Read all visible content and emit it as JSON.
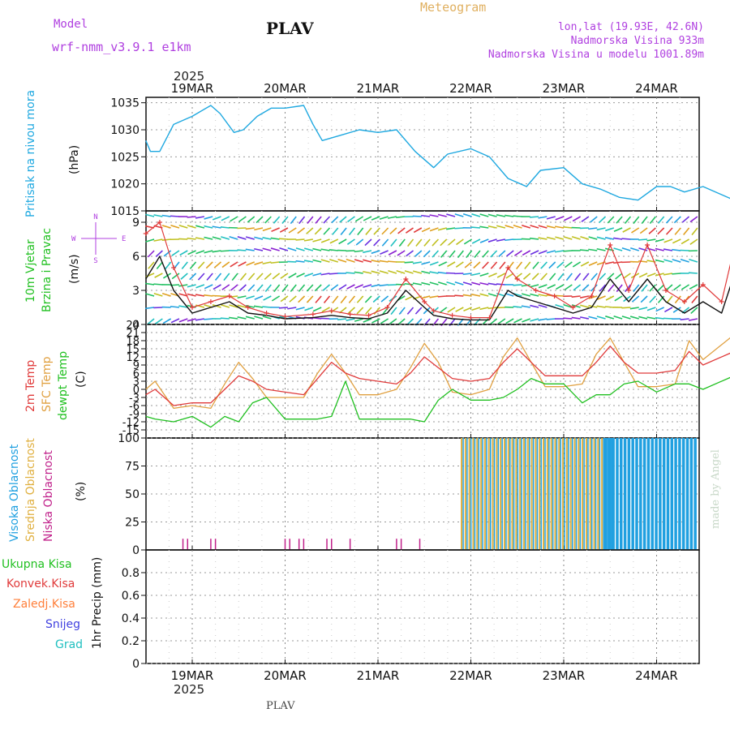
{
  "header": {
    "model_label": "Model",
    "model_name": "wrf-nmm_v3.9.1 e1km",
    "station": "PLAV",
    "meteogram_label": "Meteogram",
    "lonlat": "lon,lat (19.93E, 42.6N)",
    "elevation": "Nadmorska Visina 933m",
    "model_elevation": "Nadmorska Visina u modelu 1001.89m",
    "watermark": "made by Angel",
    "footer_station": "PLAV",
    "year": "2025",
    "dates": [
      "19MAR",
      "20MAR",
      "21MAR",
      "22MAR",
      "23MAR",
      "24MAR"
    ]
  },
  "panel_labels": {
    "pressure": {
      "title": "Pritisak na nivou mora",
      "unit": "(hPa)"
    },
    "wind": {
      "title1": "10m Vjetar",
      "title2": "Brzina i Pravac",
      "unit": "(m/s)",
      "compass_n": "N",
      "compass_s": "S",
      "compass_e": "E",
      "compass_w": "W"
    },
    "temp": {
      "t1": "2m Temp",
      "t2": "SFC Temp",
      "t3": "dewpt Temp",
      "unit": "(C)"
    },
    "cloud": {
      "c1": "Visoka Oblacnost",
      "c2": "Srednja Oblacnost",
      "c3": "Niska Oblacnost",
      "unit": "(%)"
    },
    "precip": {
      "p1": "Ukupna Kisa",
      "p2": "Konvek.Kisa",
      "p3": "Zaledj.Kisa",
      "p4": "Snijeg",
      "p5": "Grad",
      "unit": "1hr Precip (mm)"
    }
  },
  "colors": {
    "pressure": "#1ea8e0",
    "t2m": "#e03a3a",
    "tsfc": "#e0a040",
    "dewpt": "#20c020",
    "wind_speed": "#111111",
    "wind_gust": "#e03a3a",
    "cloud_high": "#20a0e0",
    "cloud_mid": "#e0b040",
    "cloud_low": "#c0208a",
    "rain_total": "#20c020",
    "rain_conv": "#e03a3a",
    "rain_freezing": "#ff7f3a",
    "snow": "#4040e0",
    "hail": "#20c0c0",
    "title_purple": "#b040e0",
    "meteogram_orange": "#e0b060"
  },
  "chart_data": [
    {
      "type": "line",
      "name": "pressure",
      "x_unit": "days since 19MAR 00Z",
      "ylim": [
        1015,
        1036
      ],
      "yticks": [
        1015,
        1020,
        1025,
        1030,
        1035
      ],
      "series": [
        {
          "name": "Pritisak na nivou mora",
          "x": [
            -0.5,
            -0.45,
            -0.35,
            -0.2,
            0,
            0.2,
            0.3,
            0.45,
            0.55,
            0.7,
            0.85,
            1,
            1.2,
            1.3,
            1.4,
            1.6,
            1.8,
            2,
            2.2,
            2.4,
            2.6,
            2.75,
            3,
            3.2,
            3.4,
            3.6,
            3.75,
            4,
            4.2,
            4.4,
            4.6,
            4.8,
            5,
            5.15,
            5.3,
            5.5,
            5.7,
            5.9
          ],
          "y": [
            1028,
            1026,
            1026,
            1031,
            1032.5,
            1034.5,
            1033,
            1029.5,
            1030,
            1032.5,
            1034,
            1034,
            1034.5,
            1031,
            1028,
            1029,
            1030,
            1029.5,
            1030,
            1026,
            1023,
            1025.5,
            1026.5,
            1025,
            1021,
            1019.5,
            1022.5,
            1023,
            1020,
            1019,
            1017.5,
            1017,
            1019.5,
            1019.5,
            1018.5,
            1019.5,
            1018,
            1016.5
          ]
        }
      ]
    },
    {
      "type": "line",
      "name": "wind",
      "ylim": [
        0,
        10
      ],
      "yticks": [
        0,
        3,
        6,
        9
      ],
      "series": [
        {
          "name": "speed",
          "x": [
            -0.5,
            -0.35,
            -0.2,
            0,
            0.2,
            0.4,
            0.6,
            0.8,
            1,
            1.3,
            1.5,
            1.7,
            1.9,
            2.1,
            2.3,
            2.5,
            2.6,
            2.8,
            3,
            3.2,
            3.4,
            3.5,
            3.7,
            3.9,
            4.1,
            4.3,
            4.5,
            4.7,
            4.9,
            5.1,
            5.3,
            5.5,
            5.7,
            5.9
          ],
          "y": [
            4,
            6,
            3,
            1,
            1.5,
            2,
            1,
            0.8,
            0.5,
            0.6,
            0.8,
            0.6,
            0.5,
            1,
            3,
            1.5,
            0.8,
            0.5,
            0.4,
            0.4,
            3,
            2.5,
            2,
            1.5,
            1,
            1.5,
            4,
            2,
            4,
            2,
            1,
            2,
            1,
            6
          ]
        },
        {
          "name": "gust",
          "x": [
            -0.5,
            -0.35,
            -0.2,
            0,
            0.2,
            0.4,
            0.6,
            0.8,
            1,
            1.3,
            1.5,
            1.7,
            1.9,
            2.1,
            2.3,
            2.5,
            2.6,
            2.8,
            3,
            3.2,
            3.4,
            3.5,
            3.7,
            3.9,
            4.1,
            4.3,
            4.5,
            4.7,
            4.9,
            5.1,
            5.3,
            5.5,
            5.7,
            5.9
          ],
          "y": [
            8,
            9,
            5,
            1.5,
            2,
            2.5,
            1.5,
            1,
            0.7,
            0.9,
            1.2,
            0.9,
            0.8,
            1.5,
            4,
            2,
            1.2,
            0.8,
            0.6,
            0.6,
            5,
            4,
            3,
            2.5,
            1.5,
            2.5,
            7,
            3,
            7,
            3,
            2,
            3.5,
            2,
            9
          ]
        }
      ]
    },
    {
      "type": "line",
      "name": "temperature",
      "ylim": [
        -18,
        24
      ],
      "yticks": [
        -15,
        -12,
        -9,
        -6,
        -3,
        0,
        3,
        6,
        9,
        12,
        15,
        18,
        21,
        24
      ],
      "series": [
        {
          "name": "2m Temp",
          "x": [
            -0.5,
            -0.4,
            -0.2,
            0,
            0.2,
            0.35,
            0.5,
            0.65,
            0.8,
            1,
            1.2,
            1.35,
            1.5,
            1.65,
            1.8,
            2,
            2.2,
            2.35,
            2.5,
            2.65,
            2.8,
            3,
            3.2,
            3.35,
            3.5,
            3.65,
            3.8,
            4,
            4.2,
            4.35,
            4.5,
            4.65,
            4.8,
            5,
            5.2,
            5.35,
            5.5,
            5.9
          ],
          "y": [
            -2,
            0,
            -6,
            -5,
            -5,
            0,
            5,
            3,
            0,
            -1,
            -2,
            4,
            10,
            6,
            4,
            3,
            2,
            6,
            12,
            8,
            4,
            3,
            4,
            10,
            15,
            10,
            5,
            5,
            5,
            10,
            16,
            10,
            6,
            6,
            7,
            14,
            9,
            15
          ]
        },
        {
          "name": "SFC Temp",
          "x": [
            -0.5,
            -0.4,
            -0.2,
            0,
            0.2,
            0.35,
            0.5,
            0.65,
            0.8,
            1,
            1.2,
            1.35,
            1.5,
            1.65,
            1.8,
            2,
            2.2,
            2.35,
            2.5,
            2.65,
            2.8,
            3,
            3.2,
            3.35,
            3.5,
            3.65,
            3.8,
            4,
            4.2,
            4.35,
            4.5,
            4.65,
            4.8,
            5,
            5.2,
            5.35,
            5.5,
            5.9
          ],
          "y": [
            0,
            3,
            -7,
            -6,
            -7,
            2,
            10,
            4,
            -3,
            -3,
            -3,
            6,
            13,
            6,
            -2,
            -2,
            0,
            8,
            17,
            10,
            -1,
            -2,
            0,
            12,
            19,
            10,
            1,
            1,
            2,
            13,
            19,
            10,
            1,
            1,
            2,
            18,
            11,
            22
          ]
        },
        {
          "name": "dewpt Temp",
          "x": [
            -0.5,
            -0.4,
            -0.2,
            0,
            0.2,
            0.35,
            0.5,
            0.65,
            0.8,
            1,
            1.2,
            1.35,
            1.5,
            1.65,
            1.8,
            2,
            2.2,
            2.35,
            2.5,
            2.65,
            2.8,
            3,
            3.2,
            3.35,
            3.5,
            3.65,
            3.8,
            4,
            4.2,
            4.35,
            4.5,
            4.65,
            4.8,
            5,
            5.2,
            5.35,
            5.5,
            5.9
          ],
          "y": [
            -10,
            -11,
            -12,
            -10,
            -14,
            -10,
            -12,
            -5,
            -3,
            -11,
            -11,
            -11,
            -10,
            3,
            -11,
            -11,
            -11,
            -11,
            -12,
            -4,
            0,
            -4,
            -4,
            -3,
            0,
            4,
            2,
            2,
            -5,
            -2,
            -2,
            2,
            3,
            -1,
            2,
            2,
            0,
            6
          ]
        }
      ]
    },
    {
      "type": "bar",
      "name": "clouds",
      "ylim": [
        0,
        100
      ],
      "yticks": [
        0,
        25,
        50,
        75,
        100
      ],
      "series": [
        {
          "name": "Visoka Oblacnost",
          "x_start": 4.45,
          "x_end": 5.9,
          "value": 100
        },
        {
          "name": "Srednja Oblacnost",
          "x_start": 2.9,
          "x_end": 4.5,
          "value": 100
        },
        {
          "name": "Niska Oblacnost",
          "x": [
            -0.1,
            -0.05,
            0.2,
            0.25,
            1,
            1.05,
            1.15,
            1.2,
            1.45,
            1.5,
            1.7,
            2.2,
            2.25,
            2.45
          ],
          "value": 10
        }
      ]
    },
    {
      "type": "bar",
      "name": "precip",
      "ylim": [
        0,
        1
      ],
      "yticks": [
        0,
        0.2,
        0.4,
        0.6,
        0.8
      ],
      "series": []
    }
  ]
}
